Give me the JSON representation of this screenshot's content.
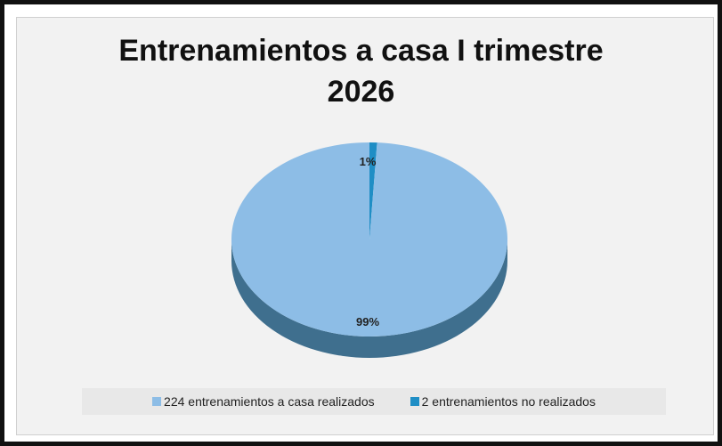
{
  "chart_data": {
    "type": "pie",
    "title_line1": "Entrenamientos a casa I trimestre",
    "title_line2": "2026",
    "slices": [
      {
        "label": "224 entrenamientos a casa  realizados",
        "value": 224,
        "percent_label": "99%",
        "color": "#8dbde6",
        "side_color": "#3f6f8e"
      },
      {
        "label": "2 entrenamientos no realizados",
        "value": 2,
        "percent_label": "1%",
        "color": "#1f8ec5",
        "side_color": "#155d84"
      }
    ],
    "legend_position": "bottom"
  }
}
